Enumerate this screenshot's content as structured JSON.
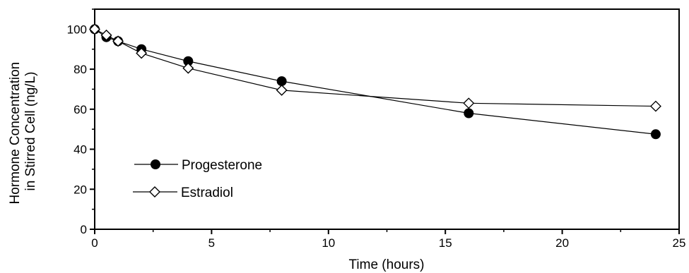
{
  "chart_data": {
    "type": "line",
    "xlabel": "Time (hours)",
    "ylabel_lines": [
      "Hormone Concentration",
      "in Stirred Cell (ng/L)"
    ],
    "xlim": [
      0,
      25
    ],
    "ylim": [
      0,
      110
    ],
    "xticks": [
      0,
      5,
      10,
      15,
      20,
      25
    ],
    "yticks": [
      0,
      20,
      40,
      60,
      80,
      100
    ],
    "grid": false,
    "legend_position": "bottom-left",
    "series": [
      {
        "name": "Progesterone",
        "marker": "filled-circle",
        "x": [
          0,
          0.5,
          1,
          2,
          4,
          8,
          16,
          24
        ],
        "y": [
          100,
          96,
          94,
          90,
          84,
          74,
          58,
          47.5
        ]
      },
      {
        "name": "Estradiol",
        "marker": "open-diamond",
        "x": [
          0,
          0.5,
          1,
          2,
          4,
          8,
          16,
          24
        ],
        "y": [
          100,
          97,
          94,
          88,
          80.5,
          69.5,
          63,
          61.5
        ]
      }
    ],
    "colors": {
      "line": "#000000",
      "marker_fill_open": "#ffffff",
      "marker_fill_solid": "#000000"
    }
  }
}
